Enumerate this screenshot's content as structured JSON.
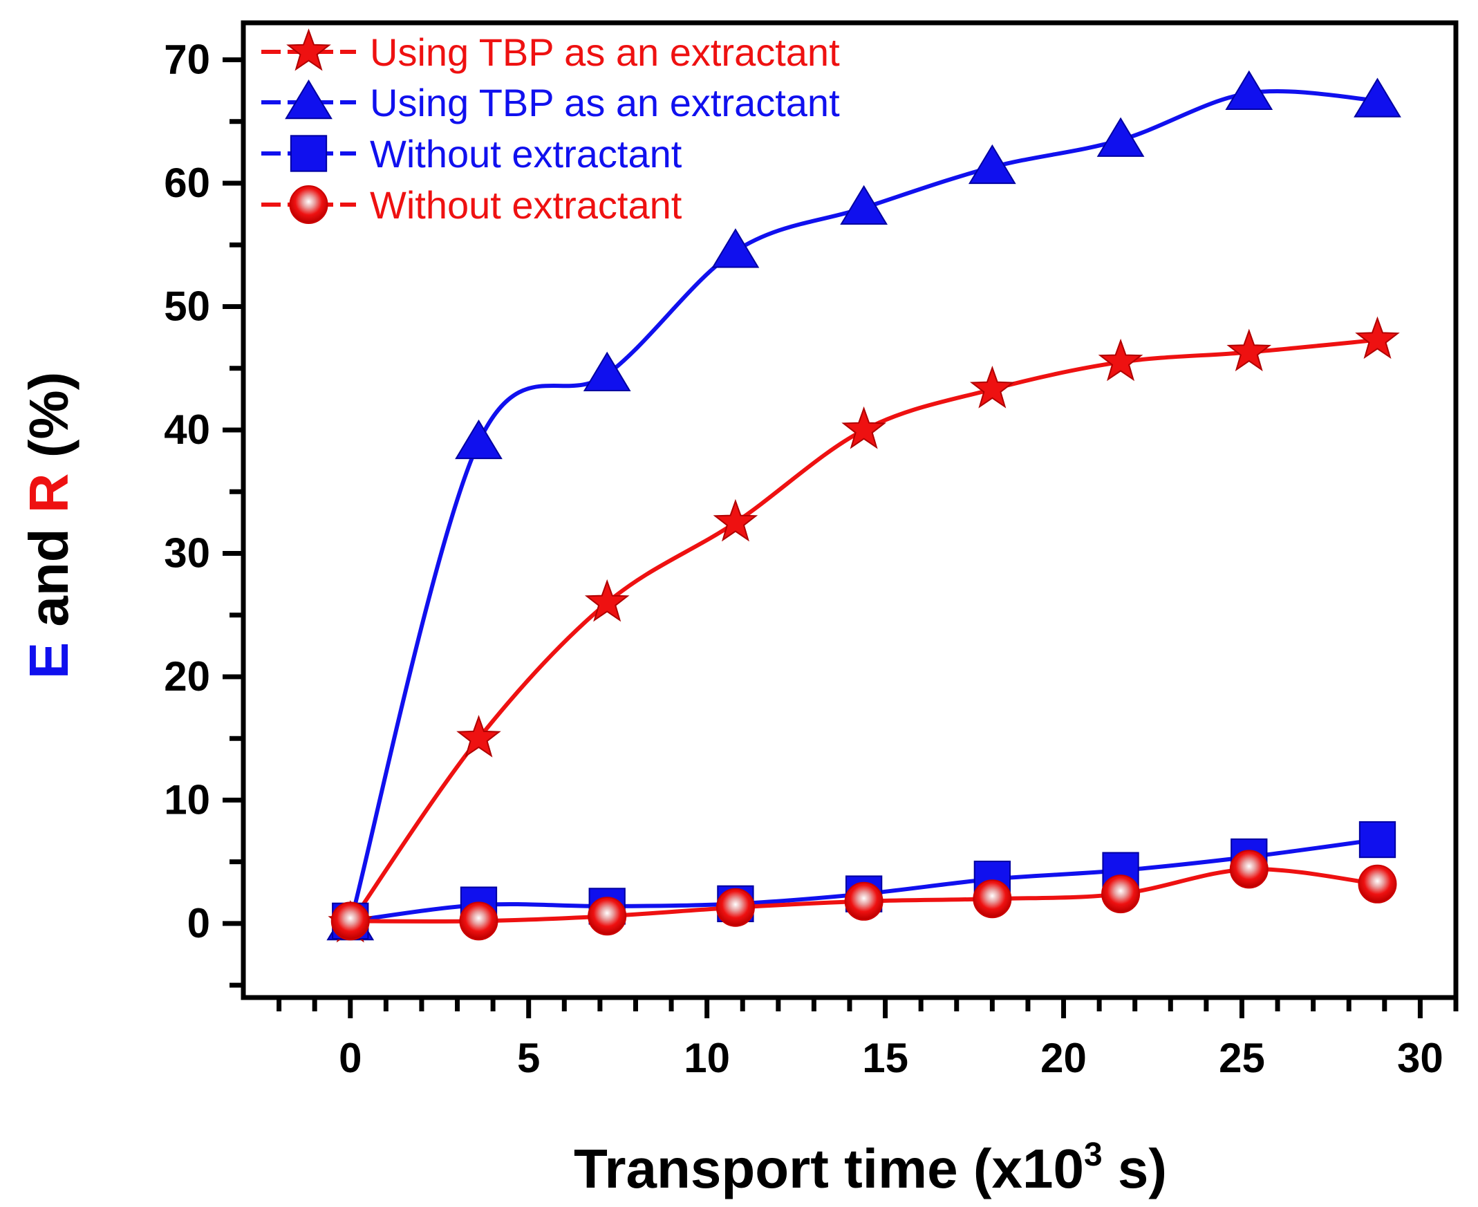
{
  "chart_data": {
    "type": "line",
    "title": "",
    "xlabel": "Transport time (x10",
    "xlabel_sup": "3",
    "xlabel_end": " s)",
    "ylabel_parts": [
      {
        "text": "E",
        "color": "#1010ee"
      },
      {
        "text": " and ",
        "color": "#000000"
      },
      {
        "text": "R",
        "color": "#ee1111"
      },
      {
        "text": " (%)",
        "color": "#000000"
      }
    ],
    "xlim": [
      -3,
      31
    ],
    "ylim": [
      -6,
      73
    ],
    "x_major_ticks": [
      0,
      5,
      10,
      15,
      20,
      25,
      30
    ],
    "x_tick_labels": [
      "0",
      "5",
      "10",
      "15",
      "20",
      "25",
      "30"
    ],
    "y_major_ticks": [
      0,
      10,
      20,
      30,
      40,
      50,
      60,
      70
    ],
    "y_tick_labels": [
      "0",
      "10",
      "20",
      "30",
      "40",
      "50",
      "60",
      "70"
    ],
    "legend_position": "top-left",
    "x": [
      0,
      3.6,
      7.2,
      10.8,
      14.4,
      18.0,
      21.6,
      25.2,
      28.8
    ],
    "series": [
      {
        "name": "Using TBP as an extractant",
        "color": "#ee1111",
        "marker": "star",
        "values": [
          0,
          15,
          26,
          32.5,
          40,
          43.3,
          45.5,
          46.3,
          47.3
        ]
      },
      {
        "name": "Using TBP as an extractant",
        "color": "#1010ee",
        "marker": "triangle",
        "values": [
          0,
          39,
          44.5,
          54.5,
          58,
          61.3,
          63.5,
          67.3,
          66.7
        ]
      },
      {
        "name": "Without extractant",
        "color": "#1010ee",
        "marker": "square",
        "values": [
          0.2,
          1.5,
          1.4,
          1.6,
          2.4,
          3.6,
          4.3,
          5.4,
          6.8
        ]
      },
      {
        "name": "Without extractant",
        "color": "#ee1111",
        "marker": "circle",
        "values": [
          0.2,
          0.2,
          0.6,
          1.3,
          1.8,
          2.0,
          2.4,
          4.4,
          3.2
        ]
      }
    ]
  }
}
